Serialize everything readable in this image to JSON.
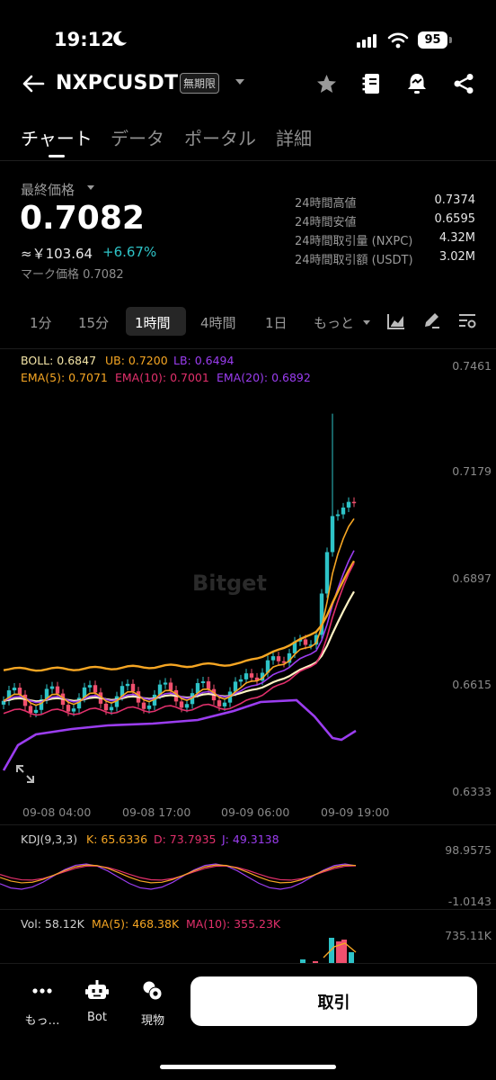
{
  "status_bar": {
    "time": "19:12",
    "battery": "95"
  },
  "header": {
    "symbol": "NXPCUSDT",
    "contract_badge": "無期限"
  },
  "tabs": [
    {
      "label": "チャート",
      "active": true
    },
    {
      "label": "データ"
    },
    {
      "label": "ポータル"
    },
    {
      "label": "詳細"
    }
  ],
  "price": {
    "label": "最終価格",
    "last": "0.7082",
    "fiat": "≈￥103.64",
    "change": "+6.67%",
    "mark": "マーク価格 0.7082",
    "change_color": "#2ec3c7"
  },
  "stats": [
    {
      "label": "24時間高値",
      "value": "0.7374"
    },
    {
      "label": "24時間安値",
      "value": "0.6595"
    },
    {
      "label": "24時間取引量 (NXPC)",
      "value": "4.32M"
    },
    {
      "label": "24時間取引額 (USDT)",
      "value": "3.02M"
    }
  ],
  "intervals": {
    "m1": "1分",
    "m15": "15分",
    "h1": "1時間",
    "h4": "4時間",
    "d1": "1日",
    "more": "もっと",
    "selected": "1時間"
  },
  "indicators": {
    "boll": "BOLL: 0.6847",
    "ub": "UB: 0.7200",
    "lb": "LB: 0.6494",
    "ema5": "EMA(5): 0.7071",
    "ema10": "EMA(10): 0.7001",
    "ema20": "EMA(20): 0.6892",
    "kdj_title": "KDJ(9,3,3)",
    "k": "K: 65.6336",
    "d": "D: 73.7935",
    "j": "J: 49.3138",
    "vol": "Vol: 58.12K",
    "vol_ma5": "MA(5): 468.38K",
    "vol_ma10": "MA(10): 355.23K"
  },
  "axes": {
    "price_ticks": [
      "0.7461",
      "0.7179",
      "0.6897",
      "0.6615",
      "0.6333"
    ],
    "time_ticks": [
      "09-08 04:00",
      "09-08 17:00",
      "09-09 06:00",
      "09-09 19:00"
    ],
    "kdj_ticks": [
      "98.9575",
      "-1.0143"
    ],
    "vol_ticks": [
      "735.11K"
    ]
  },
  "watermark": "Bitget",
  "colors": {
    "up": "#2ec3c7",
    "down": "#f0506e",
    "accent": "#f6a623"
  },
  "bottom_nav": {
    "more": "もっ…",
    "bot": "Bot",
    "spot": "現物",
    "trade": "取引"
  }
}
